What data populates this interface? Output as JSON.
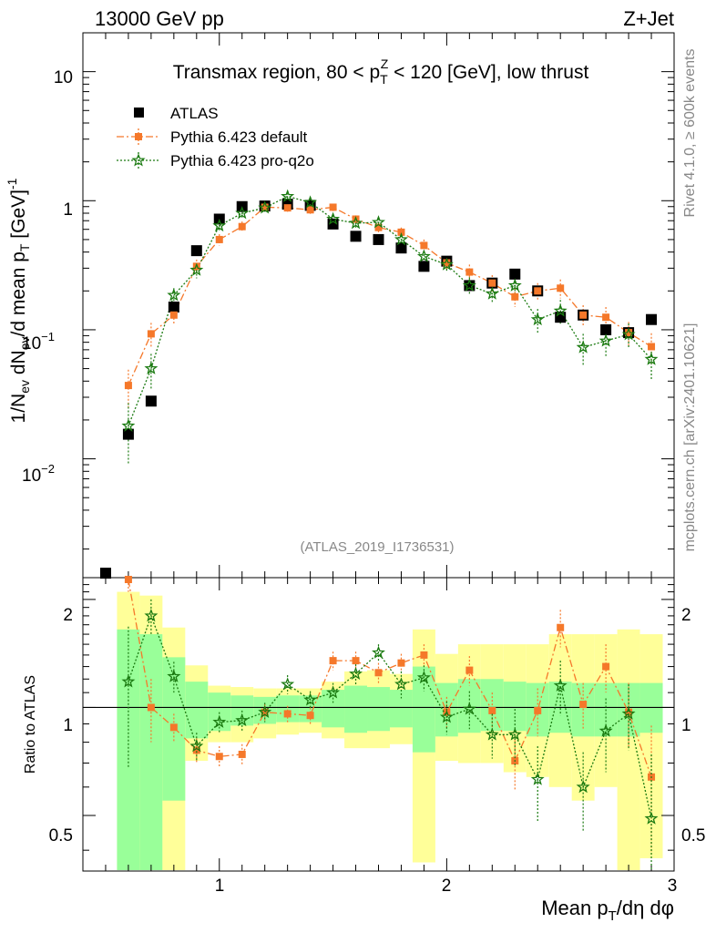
{
  "header": {
    "left": "13000 GeV pp",
    "right": "Z+Jet"
  },
  "side_labels": {
    "top": "Rivet 4.1.0, ≥ 600k events",
    "bottom": "mcplots.cern.ch [arXiv:2401.10621]"
  },
  "chart_data": {
    "type": "scatter",
    "title": "Transmax region, 80 < p_T^Z < 120 [GeV], low thrust",
    "title_parts": {
      "pre": "Transmax region, 80 < p",
      "sub": "T",
      "sup": "Z",
      "post": " < 120 [GeV], low thrust"
    },
    "ylabel": "1/N_ev dN_ev/d mean p_T [GeV]^-1",
    "ylabel_parts": {
      "a": "1/N",
      "a_sub": "ev",
      "b": " dN",
      "b_sub": "ev",
      "c": "/d mean p",
      "c_sub": "T",
      "d": " [GeV]",
      "d_sup": "-1"
    },
    "ratio_ylabel": "Ratio to ATLAS",
    "xlabel": "Mean p_T/dη dφ",
    "xlabel_parts": {
      "a": "Mean p",
      "a_sub": "T",
      "b": "/dη dφ"
    },
    "watermark": "(ATLAS_2019_I1736531)",
    "xlim": [
      0.4,
      3.0
    ],
    "ylim": [
      0.0012,
      20
    ],
    "ratio_ylim": [
      0.35,
      2.3
    ],
    "x_ticks": [
      "1",
      "2",
      "3"
    ],
    "y_ticks": {
      "d1": "10",
      "d2": "1",
      "d3": "10",
      "d3_sup": "−1",
      "d4": "10",
      "d4_sup": "−2"
    },
    "ratio_y_ticks": [
      "2",
      "1",
      "0.5"
    ],
    "legend_position": "top-left",
    "series": [
      {
        "name": "ATLAS",
        "color": "#000000",
        "marker": "square",
        "x": [
          0.5,
          0.6,
          0.7,
          0.8,
          0.9,
          1.0,
          1.1,
          1.2,
          1.3,
          1.4,
          1.5,
          1.6,
          1.7,
          1.8,
          1.9,
          2.0,
          2.1,
          2.2,
          2.3,
          2.4,
          2.5,
          2.6,
          2.7,
          2.8,
          2.9
        ],
        "y": [
          0.0013,
          0.0155,
          0.028,
          0.15,
          0.41,
          0.72,
          0.9,
          0.91,
          0.94,
          0.92,
          0.66,
          0.53,
          0.5,
          0.43,
          0.31,
          0.34,
          0.22,
          0.23,
          0.27,
          0.2,
          0.125,
          0.13,
          0.1,
          0.095,
          0.12
        ]
      },
      {
        "name": "Pythia 6.423 default",
        "color": "#f5782a",
        "marker": "square",
        "line": "dashdot",
        "x": [
          0.6,
          0.7,
          0.8,
          0.9,
          1.0,
          1.1,
          1.2,
          1.3,
          1.4,
          1.5,
          1.6,
          1.7,
          1.8,
          1.9,
          2.0,
          2.1,
          2.2,
          2.3,
          2.4,
          2.5,
          2.6,
          2.7,
          2.8,
          2.9
        ],
        "y": [
          0.037,
          0.093,
          0.13,
          0.31,
          0.5,
          0.63,
          0.89,
          0.88,
          0.85,
          0.89,
          0.72,
          0.62,
          0.57,
          0.45,
          0.33,
          0.28,
          0.23,
          0.18,
          0.2,
          0.21,
          0.13,
          0.125,
          0.095,
          0.074
        ],
        "err": [
          0.012,
          0.02,
          0.02,
          0.04,
          0.05,
          0.06,
          0.06,
          0.06,
          0.06,
          0.06,
          0.05,
          0.05,
          0.05,
          0.05,
          0.04,
          0.04,
          0.035,
          0.03,
          0.03,
          0.035,
          0.025,
          0.025,
          0.02,
          0.02
        ],
        "ratio": [
          2.3,
          1.0,
          0.88,
          0.76,
          0.73,
          0.74,
          0.97,
          0.96,
          0.95,
          1.35,
          1.35,
          1.25,
          1.33,
          1.4,
          0.97,
          1.27,
          0.98,
          0.71,
          0.98,
          1.67,
          1.02,
          1.3,
          0.97,
          0.64
        ],
        "ratio_err": [
          0.2,
          0.2,
          0.08,
          0.06,
          0.05,
          0.05,
          0.05,
          0.05,
          0.05,
          0.08,
          0.08,
          0.08,
          0.08,
          0.1,
          0.1,
          0.12,
          0.12,
          0.12,
          0.15,
          0.2,
          0.15,
          0.2,
          0.2,
          0.25
        ]
      },
      {
        "name": "Pythia 6.423 pro-q2o",
        "color": "#1a7a10",
        "marker": "star",
        "line": "dotted",
        "x": [
          0.6,
          0.7,
          0.8,
          0.9,
          1.0,
          1.1,
          1.2,
          1.3,
          1.4,
          1.5,
          1.6,
          1.7,
          1.8,
          1.9,
          2.0,
          2.1,
          2.2,
          2.3,
          2.4,
          2.5,
          2.6,
          2.7,
          2.8,
          2.9
        ],
        "y": [
          0.018,
          0.05,
          0.185,
          0.29,
          0.64,
          0.8,
          0.88,
          1.08,
          0.97,
          0.72,
          0.67,
          0.68,
          0.5,
          0.37,
          0.32,
          0.22,
          0.19,
          0.22,
          0.12,
          0.14,
          0.073,
          0.082,
          0.092,
          0.059
        ],
        "err": [
          0.009,
          0.015,
          0.025,
          0.04,
          0.05,
          0.06,
          0.06,
          0.07,
          0.06,
          0.05,
          0.05,
          0.05,
          0.04,
          0.04,
          0.04,
          0.035,
          0.03,
          0.03,
          0.025,
          0.03,
          0.02,
          0.02,
          0.02,
          0.018
        ],
        "ratio": [
          1.18,
          1.8,
          1.22,
          0.78,
          0.91,
          0.92,
          0.97,
          1.16,
          1.05,
          1.1,
          1.24,
          1.42,
          1.16,
          1.21,
          0.94,
          0.99,
          0.84,
          0.84,
          0.63,
          1.15,
          0.6,
          0.86,
          0.96,
          0.49
        ],
        "ratio_err": [
          0.5,
          0.2,
          0.12,
          0.07,
          0.06,
          0.06,
          0.06,
          0.07,
          0.06,
          0.07,
          0.08,
          0.08,
          0.1,
          0.1,
          0.1,
          0.12,
          0.12,
          0.15,
          0.15,
          0.2,
          0.15,
          0.2,
          0.2,
          0.25
        ]
      }
    ],
    "ratio_bands": {
      "edges": [
        0.55,
        0.65,
        0.75,
        0.85,
        0.95,
        1.05,
        1.15,
        1.25,
        1.35,
        1.45,
        1.55,
        1.65,
        1.75,
        1.85,
        1.95,
        2.05,
        2.15,
        2.25,
        2.35,
        2.45,
        2.55,
        2.65,
        2.75,
        2.85,
        2.95
      ],
      "green_lo": [
        0.35,
        0.35,
        0.55,
        0.82,
        0.86,
        0.89,
        0.9,
        0.91,
        0.91,
        0.88,
        0.85,
        0.86,
        0.88,
        0.75,
        0.83,
        0.85,
        0.86,
        0.86,
        0.83,
        0.85,
        0.83,
        0.83,
        0.83,
        0.85
      ],
      "green_hi": [
        1.65,
        1.6,
        1.38,
        1.18,
        1.1,
        1.08,
        1.07,
        1.08,
        1.08,
        1.12,
        1.15,
        1.14,
        1.12,
        1.3,
        1.17,
        1.2,
        1.2,
        1.18,
        1.17,
        1.18,
        1.17,
        1.17,
        1.17,
        1.17
      ],
      "yellow_lo": [
        0.35,
        0.35,
        0.35,
        0.71,
        0.8,
        0.8,
        0.82,
        0.84,
        0.85,
        0.82,
        0.77,
        0.77,
        0.79,
        0.37,
        0.71,
        0.7,
        0.7,
        0.66,
        0.64,
        0.6,
        0.55,
        0.6,
        0.35,
        0.38
      ],
      "yellow_hi": [
        2.1,
        2.05,
        1.67,
        1.31,
        1.15,
        1.14,
        1.13,
        1.13,
        1.13,
        1.18,
        1.26,
        1.27,
        1.24,
        1.65,
        1.41,
        1.5,
        1.5,
        1.5,
        1.5,
        1.6,
        1.6,
        1.6,
        1.65,
        1.6
      ]
    }
  }
}
